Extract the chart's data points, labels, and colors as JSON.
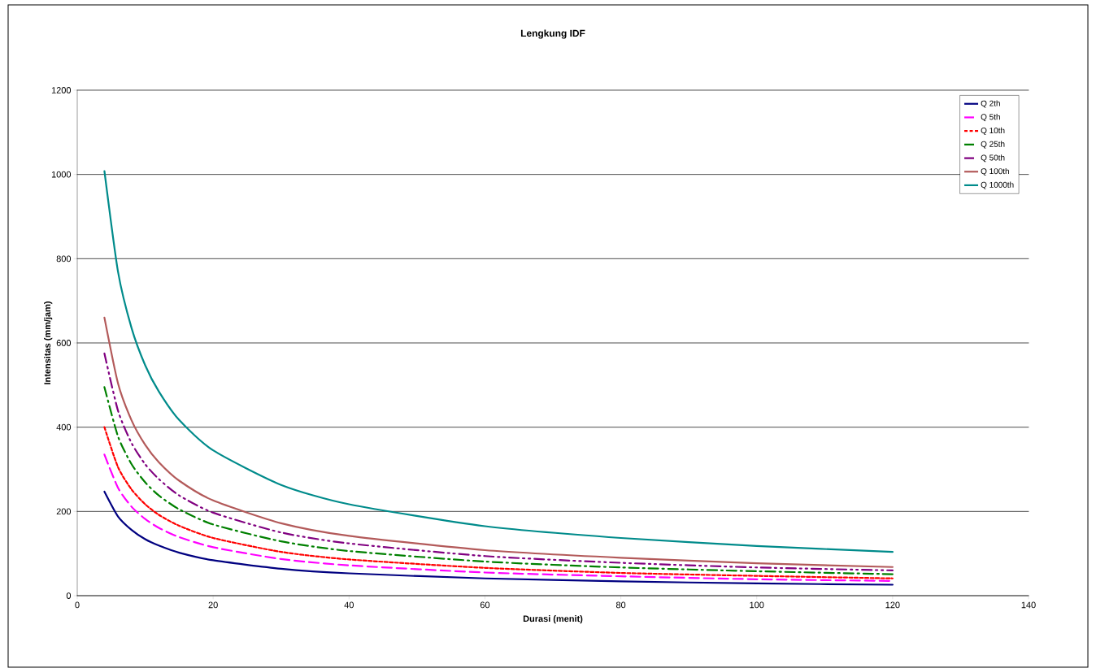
{
  "chart_data": {
    "type": "line",
    "title": "Lengkung IDF",
    "xlabel": "Durasi (menit)",
    "ylabel": "Intensitas (mm/jam)",
    "x": [
      4,
      6,
      8,
      10,
      12,
      15,
      20,
      30,
      40,
      60,
      80,
      100,
      120
    ],
    "series": [
      {
        "name": "Q 2th",
        "color": "#000080",
        "line_style": "solid",
        "values": [
          247,
          188,
          156,
          134,
          119,
          102,
          84,
          64,
          53,
          41,
          34,
          29,
          26
        ]
      },
      {
        "name": "Q 5th",
        "color": "#ff00ff",
        "line_style": "longdash",
        "values": [
          335,
          256,
          211,
          182,
          161,
          139,
          115,
          87,
          72,
          55,
          46,
          39,
          35
        ]
      },
      {
        "name": "Q 10th",
        "color": "#ff0000",
        "line_style": "dashed",
        "values": [
          400,
          305,
          252,
          217,
          192,
          166,
          137,
          104,
          86,
          66,
          54,
          47,
          41
        ]
      },
      {
        "name": "Q 25th",
        "color": "#008000",
        "line_style": "dashdot",
        "values": [
          495,
          378,
          312,
          269,
          238,
          205,
          169,
          129,
          106,
          81,
          67,
          58,
          51
        ]
      },
      {
        "name": "Q 50th",
        "color": "#800080",
        "line_style": "dashdotdot",
        "values": [
          575,
          439,
          362,
          312,
          277,
          238,
          197,
          150,
          124,
          94,
          78,
          67,
          60
        ]
      },
      {
        "name": "Q 100th",
        "color": "#b35a5a",
        "line_style": "solid",
        "values": [
          660,
          504,
          416,
          358,
          317,
          273,
          226,
          172,
          142,
          108,
          90,
          77,
          68
        ]
      },
      {
        "name": "Q 1000th",
        "color": "#008b8b",
        "line_style": "solid",
        "values": [
          1008,
          769,
          635,
          547,
          485,
          417,
          345,
          263,
          217,
          165,
          137,
          118,
          104
        ]
      }
    ],
    "xlim": [
      0,
      140
    ],
    "xticks": [
      0,
      20,
      40,
      60,
      80,
      100,
      120,
      140
    ],
    "ylim": [
      0,
      1200
    ],
    "yticks": [
      0,
      200,
      400,
      600,
      800,
      1000,
      1200
    ],
    "grid": "y",
    "legend": "top right",
    "marker": "none"
  }
}
